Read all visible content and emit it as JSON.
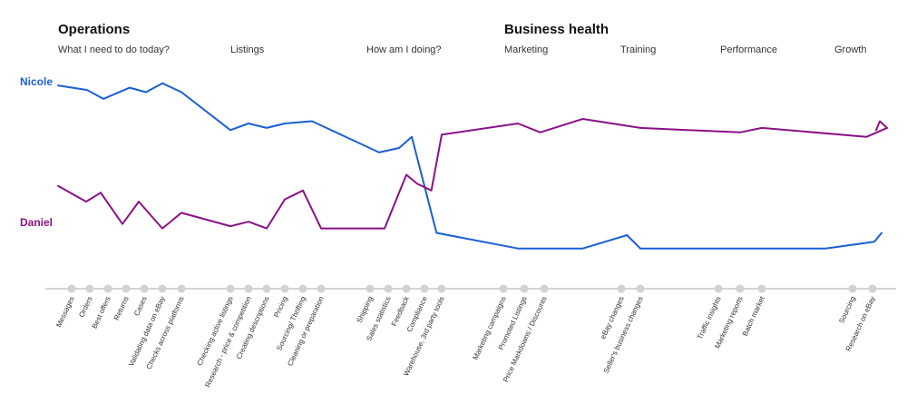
{
  "chart_data": {
    "type": "line",
    "sections": [
      {
        "title": "Operations",
        "categories": [
          "What I need to do today?",
          "Listings",
          "How am I doing?"
        ]
      },
      {
        "title": "Business health",
        "categories": [
          "Marketing",
          "Training",
          "Performance",
          "Growth"
        ]
      }
    ],
    "x": [
      "Messages",
      "Orders",
      "Best offers",
      "Returns",
      "Cases",
      "Validating data on eBay",
      "Checks across platforms",
      "Checking active listings",
      "Research - price & competition",
      "Creating descriptions",
      "Pricing",
      "Sourcing/ Thrifting",
      "Cleaning or preparation",
      "Shipping",
      "Sales statistics",
      "Feedback",
      "Compliance",
      "Warehouse, 3rd party tools",
      "Marketing campaigns",
      "Promoted Listings",
      "Price Markdowns / Discounts",
      "eBay changes",
      "Seller's business changes",
      "Traffic insights",
      "Marketing reports",
      "Batch market",
      "Sourcing",
      "Research on eBay"
    ],
    "series": [
      {
        "name": "Nicole",
        "color": "#1a5fd6",
        "values": [
          {
            "x": 0,
            "y": 91
          },
          {
            "x": 0.85,
            "y": 89
          },
          {
            "x": 1.75,
            "y": 85
          },
          {
            "x": 3.2,
            "y": 90
          },
          {
            "x": 4.1,
            "y": 88
          },
          {
            "x": 5,
            "y": 92
          },
          {
            "x": 6,
            "y": 88
          },
          {
            "x": 7,
            "y": 71
          },
          {
            "x": 8,
            "y": 74
          },
          {
            "x": 9,
            "y": 72
          },
          {
            "x": 10,
            "y": 74
          },
          {
            "x": 11.5,
            "y": 75
          },
          {
            "x": 13.5,
            "y": 61
          },
          {
            "x": 14.6,
            "y": 63
          },
          {
            "x": 15.3,
            "y": 68
          },
          {
            "x": 16.7,
            "y": 25
          },
          {
            "x": 18.7,
            "y": 18
          },
          {
            "x": 20.5,
            "y": 18
          },
          {
            "x": 21.3,
            "y": 24
          },
          {
            "x": 22,
            "y": 18
          },
          {
            "x": 25.7,
            "y": 18
          },
          {
            "x": 27.1,
            "y": 21
          },
          {
            "x": 28.5,
            "y": 25
          }
        ]
      },
      {
        "name": "Daniel",
        "color": "#8a1187",
        "values": [
          {
            "x": 0,
            "y": 46
          },
          {
            "x": 0.8,
            "y": 39
          },
          {
            "x": 1.6,
            "y": 43
          },
          {
            "x": 2.8,
            "y": 29
          },
          {
            "x": 3.7,
            "y": 39
          },
          {
            "x": 5,
            "y": 27
          },
          {
            "x": 6,
            "y": 34
          },
          {
            "x": 7,
            "y": 28
          },
          {
            "x": 8,
            "y": 30
          },
          {
            "x": 9,
            "y": 27
          },
          {
            "x": 10,
            "y": 40
          },
          {
            "x": 11,
            "y": 44
          },
          {
            "x": 12,
            "y": 27
          },
          {
            "x": 13,
            "y": 27
          },
          {
            "x": 13.8,
            "y": 27
          },
          {
            "x": 15,
            "y": 51
          },
          {
            "x": 15.6,
            "y": 47
          },
          {
            "x": 16.4,
            "y": 44
          },
          {
            "x": 17,
            "y": 69
          },
          {
            "x": 18.7,
            "y": 74
          },
          {
            "x": 19.8,
            "y": 70
          },
          {
            "x": 20.5,
            "y": 76
          },
          {
            "x": 22,
            "y": 72
          },
          {
            "x": 24,
            "y": 70
          },
          {
            "x": 25,
            "y": 72
          },
          {
            "x": 26.7,
            "y": 68
          },
          {
            "x": 27.8,
            "y": 72
          },
          {
            "x": 28.4,
            "y": 75
          },
          {
            "x": 29.2,
            "y": 71
          }
        ]
      }
    ],
    "ylim": [
      0,
      100
    ],
    "grid": false,
    "legend": "left"
  }
}
